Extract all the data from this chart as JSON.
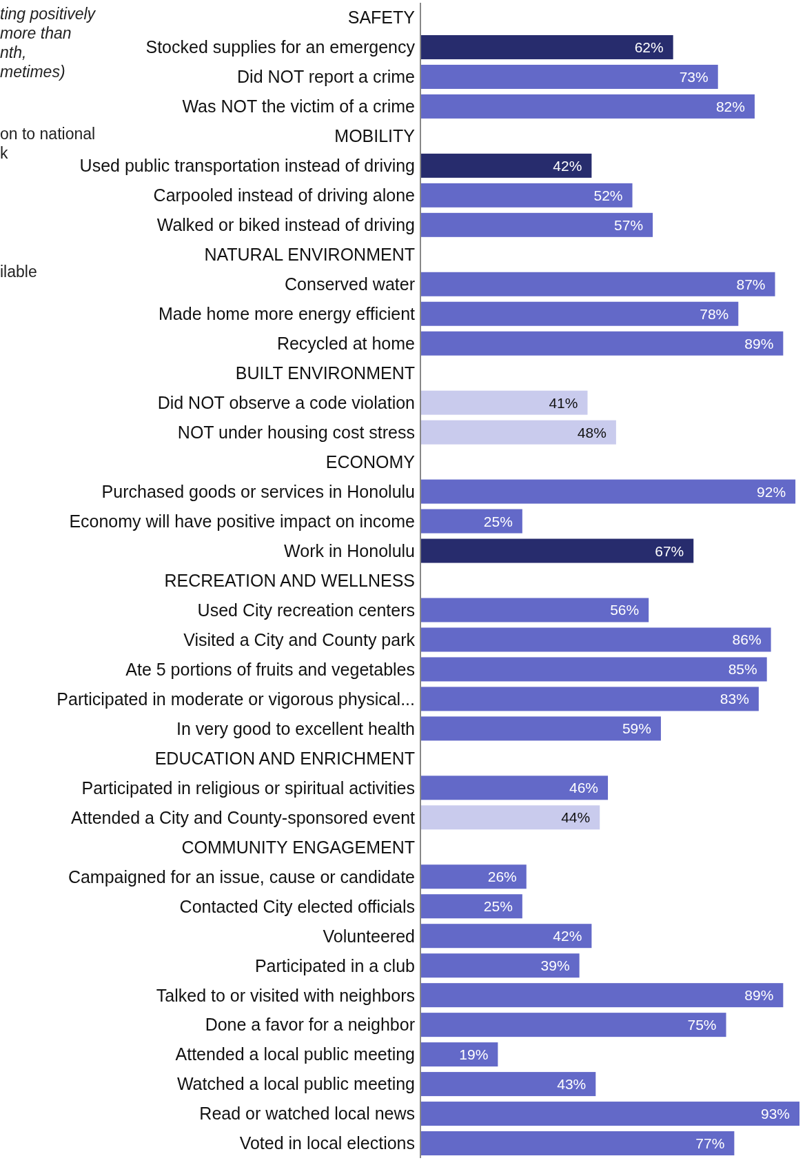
{
  "chart_data": {
    "type": "bar",
    "orientation": "horizontal",
    "categories": [
      "SAFETY",
      "Stocked supplies for an emergency",
      "Did NOT report a crime",
      "Was NOT the victim of a crime",
      "MOBILITY",
      "Used public transportation instead of driving",
      "Carpooled instead of driving alone",
      "Walked or biked instead of driving",
      "NATURAL ENVIRONMENT",
      "Conserved water",
      "Made home more energy efficient",
      "Recycled at home",
      "BUILT ENVIRONMENT",
      "Did NOT observe a code violation",
      "NOT under housing cost stress",
      "ECONOMY",
      "Purchased goods or services in Honolulu",
      "Economy will have positive impact on income",
      "Work in Honolulu",
      "RECREATION AND WELLNESS",
      "Used City recreation centers",
      "Visited a City and County park",
      "Ate 5 portions of fruits and vegetables",
      "Participated in moderate or vigorous physical...",
      "In very good to excellent health",
      "EDUCATION AND ENRICHMENT",
      "Participated in religious or spiritual activities",
      "Attended a City and County-sponsored event",
      "COMMUNITY ENGAGEMENT",
      "Campaigned for an issue, cause or candidate",
      "Contacted City elected officials",
      "Volunteered",
      "Participated in a club",
      "Talked to or visited with neighbors",
      "Done a favor for a neighbor",
      "Attended a local public meeting",
      "Watched a local public meeting",
      "Read or watched local news",
      "Voted in local elections"
    ],
    "values": [
      null,
      62,
      73,
      82,
      null,
      42,
      52,
      57,
      null,
      87,
      78,
      89,
      null,
      41,
      48,
      null,
      92,
      25,
      67,
      null,
      56,
      86,
      85,
      83,
      59,
      null,
      46,
      44,
      null,
      26,
      25,
      42,
      39,
      89,
      75,
      19,
      43,
      93,
      77
    ],
    "value_labels": [
      null,
      "62%",
      "73%",
      "82%",
      null,
      "42%",
      "52%",
      "57%",
      null,
      "87%",
      "78%",
      "89%",
      null,
      "41%",
      "48%",
      null,
      "92%",
      "25%",
      "67%",
      null,
      "56%",
      "86%",
      "85%",
      "83%",
      "59%",
      null,
      "46%",
      "44%",
      null,
      "26%",
      "25%",
      "42%",
      "39%",
      "89%",
      "75%",
      "19%",
      "43%",
      "93%",
      "77%"
    ],
    "colors": [
      null,
      "#272c6d",
      "#6369c8",
      "#6369c8",
      null,
      "#272c6d",
      "#6369c8",
      "#6369c8",
      null,
      "#6369c8",
      "#6369c8",
      "#6369c8",
      null,
      "#c9cbed",
      "#c9cbed",
      null,
      "#6369c8",
      "#6369c8",
      "#272c6d",
      null,
      "#6369c8",
      "#6369c8",
      "#6369c8",
      "#6369c8",
      "#6369c8",
      null,
      "#6369c8",
      "#c9cbed",
      null,
      "#6369c8",
      "#6369c8",
      "#6369c8",
      "#6369c8",
      "#6369c8",
      "#6369c8",
      "#6369c8",
      "#6369c8",
      "#6369c8",
      "#6369c8"
    ],
    "annotations": [
      "ting positively\nmore than\nnth,\nmetimes)",
      "on to national\nk",
      "ilable"
    ]
  }
}
